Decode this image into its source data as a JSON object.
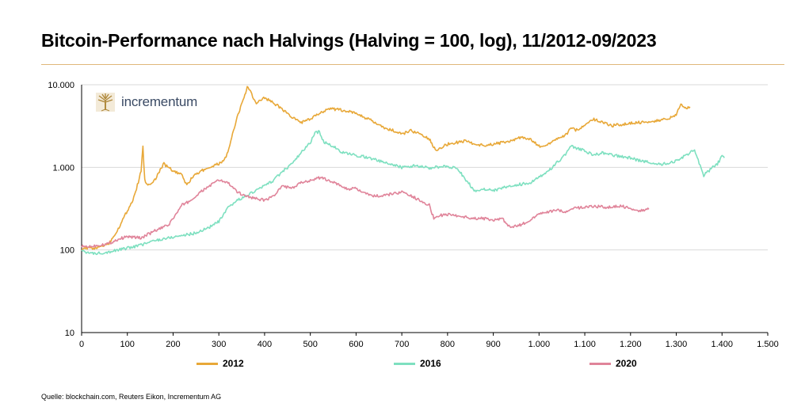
{
  "title": "Bitcoin-Performance nach Halvings (Halving = 100, log), 11/2012-09/2023",
  "source": "Quelle: blockchain.com, Reuters Eikon, Incrementum AG",
  "logo_text": "incrementum",
  "colors": {
    "accent_rule": "#e0b87a",
    "grid": "#d9d9d9",
    "axis": "#000000"
  },
  "chart_data": {
    "type": "line",
    "title": "Bitcoin-Performance nach Halvings (Halving = 100, log), 11/2012-09/2023",
    "xlabel": "",
    "ylabel": "",
    "xlim": [
      0,
      1500
    ],
    "ylim": [
      10,
      10000
    ],
    "yscale": "log",
    "grid": "horizontal",
    "legend": "bottom",
    "x_ticks": [
      0,
      100,
      200,
      300,
      400,
      500,
      600,
      700,
      800,
      900,
      1000,
      1100,
      1200,
      1300,
      1400,
      1500
    ],
    "x_tick_labels": [
      "0",
      "100",
      "200",
      "300",
      "400",
      "500",
      "600",
      "700",
      "800",
      "900",
      "1.000",
      "1.100",
      "1.200",
      "1.300",
      "1.400",
      "1.500"
    ],
    "y_ticks": [
      10,
      100,
      1000,
      10000
    ],
    "y_tick_labels": [
      "10",
      "100",
      "1.000",
      "10.000"
    ],
    "series": [
      {
        "name": "2012",
        "color": "#e8a838",
        "x": [
          0,
          30,
          60,
          80,
          100,
          110,
          120,
          130,
          134,
          138,
          145,
          160,
          170,
          180,
          200,
          220,
          230,
          245,
          260,
          280,
          300,
          310,
          320,
          330,
          340,
          355,
          362,
          370,
          380,
          400,
          420,
          440,
          460,
          480,
          500,
          520,
          540,
          560,
          580,
          600,
          620,
          640,
          660,
          680,
          700,
          720,
          740,
          760,
          775,
          780,
          800,
          820,
          840,
          860,
          880,
          900,
          920,
          940,
          960,
          980,
          1000,
          1020,
          1040,
          1060,
          1070,
          1080,
          1100,
          1120,
          1140,
          1160,
          1180,
          1200,
          1220,
          1240,
          1260,
          1280,
          1300,
          1310,
          1320,
          1330
        ],
        "y": [
          105,
          105,
          120,
          180,
          300,
          380,
          550,
          900,
          1800,
          700,
          600,
          700,
          900,
          1100,
          900,
          800,
          600,
          800,
          900,
          1000,
          1100,
          1200,
          1500,
          2500,
          4000,
          7000,
          9500,
          8000,
          6000,
          7000,
          6000,
          5000,
          4000,
          3500,
          3800,
          4500,
          5200,
          5000,
          4800,
          4500,
          4000,
          3500,
          3000,
          2800,
          2500,
          2800,
          2500,
          2200,
          1600,
          1700,
          1900,
          2000,
          2100,
          1900,
          1850,
          1900,
          2000,
          2100,
          2300,
          2200,
          1800,
          1900,
          2200,
          2500,
          3000,
          2800,
          3200,
          3800,
          3500,
          3200,
          3300,
          3400,
          3500,
          3600,
          3700,
          3800,
          4300,
          6000,
          5200,
          5400
        ]
      },
      {
        "name": "2016",
        "color": "#7ee0c0",
        "x": [
          0,
          20,
          40,
          60,
          80,
          100,
          130,
          160,
          190,
          220,
          250,
          280,
          300,
          320,
          340,
          360,
          380,
          400,
          420,
          440,
          460,
          480,
          500,
          510,
          520,
          530,
          550,
          570,
          600,
          630,
          660,
          700,
          730,
          760,
          790,
          820,
          840,
          860,
          880,
          900,
          940,
          980,
          1020,
          1050,
          1060,
          1070,
          1080,
          1100,
          1120,
          1140,
          1160,
          1180,
          1200,
          1220,
          1240,
          1260,
          1280,
          1300,
          1320,
          1340,
          1360,
          1380,
          1390,
          1400,
          1405
        ],
        "y": [
          100,
          90,
          92,
          95,
          100,
          105,
          115,
          130,
          140,
          150,
          160,
          190,
          220,
          320,
          400,
          450,
          520,
          600,
          700,
          900,
          1100,
          1500,
          2000,
          2600,
          2700,
          2000,
          1800,
          1500,
          1400,
          1300,
          1150,
          1000,
          1050,
          980,
          1020,
          1000,
          700,
          520,
          550,
          520,
          600,
          650,
          900,
          1300,
          1500,
          1800,
          1700,
          1600,
          1400,
          1500,
          1400,
          1350,
          1300,
          1200,
          1150,
          1100,
          1100,
          1200,
          1400,
          1600,
          800,
          1000,
          1100,
          1350,
          1300
        ]
      },
      {
        "name": "2020",
        "color": "#e0849a",
        "x": [
          0,
          20,
          40,
          60,
          80,
          100,
          130,
          160,
          190,
          220,
          240,
          260,
          280,
          300,
          320,
          340,
          360,
          380,
          400,
          420,
          440,
          460,
          480,
          500,
          520,
          540,
          560,
          580,
          600,
          620,
          640,
          660,
          680,
          700,
          720,
          740,
          760,
          770,
          780,
          800,
          820,
          840,
          860,
          880,
          900,
          920,
          930,
          940,
          960,
          980,
          1000,
          1020,
          1040,
          1060,
          1080,
          1100,
          1120,
          1140,
          1160,
          1180,
          1200,
          1220,
          1240
        ],
        "y": [
          110,
          110,
          115,
          120,
          135,
          145,
          140,
          170,
          200,
          350,
          400,
          500,
          600,
          700,
          650,
          500,
          450,
          420,
          400,
          450,
          600,
          550,
          650,
          700,
          750,
          700,
          620,
          550,
          550,
          480,
          450,
          450,
          480,
          500,
          450,
          400,
          350,
          240,
          260,
          270,
          260,
          250,
          240,
          240,
          230,
          240,
          200,
          190,
          200,
          230,
          270,
          290,
          300,
          290,
          320,
          330,
          340,
          330,
          330,
          340,
          320,
          300,
          310
        ]
      }
    ]
  }
}
